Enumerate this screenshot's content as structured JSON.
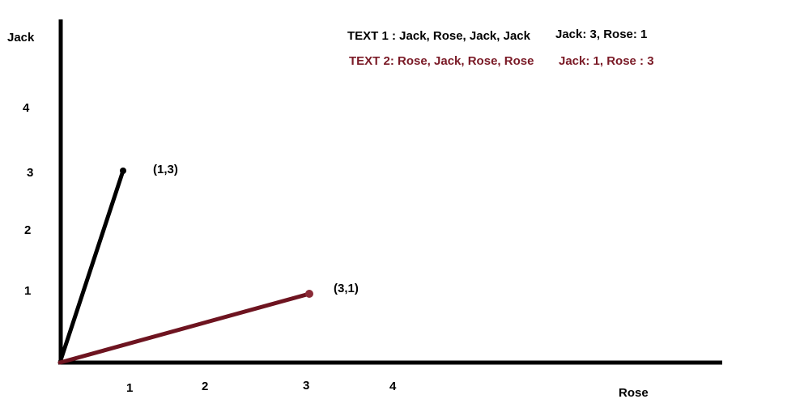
{
  "axes": {
    "y_label": "Jack",
    "x_label": "Rose",
    "y_ticks": [
      "1",
      "2",
      "3",
      "4"
    ],
    "x_ticks": [
      "1",
      "2",
      "3",
      "4"
    ]
  },
  "vectors": [
    {
      "name": "text1-vector",
      "label": "(1,3)",
      "rose": 1,
      "jack": 3,
      "color": "#000000"
    },
    {
      "name": "text2-vector",
      "label": "(3,1)",
      "rose": 3,
      "jack": 1,
      "color": "#6e1420"
    }
  ],
  "legend": {
    "text1": {
      "text": "TEXT 1 : Jack, Rose, Jack, Jack",
      "counts": "Jack: 3, Rose: 1",
      "color": "#000000"
    },
    "text2": {
      "text": "TEXT 2: Rose, Jack, Rose, Rose",
      "counts": "Jack: 1, Rose : 3",
      "color": "#7a1a26"
    }
  }
}
